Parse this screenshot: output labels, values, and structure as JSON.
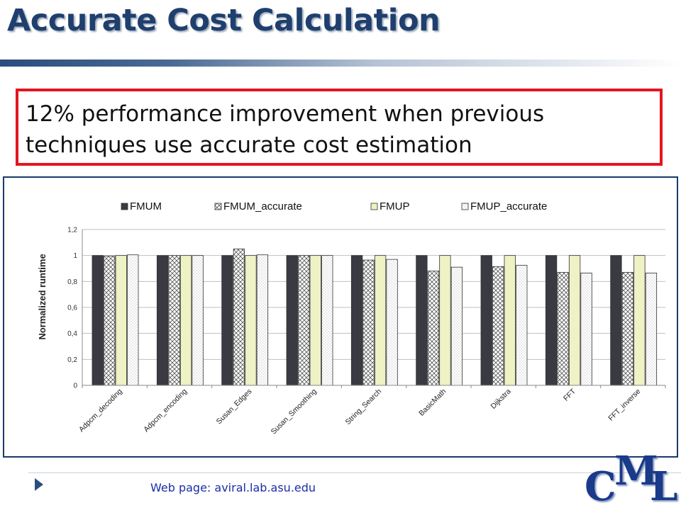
{
  "slide": {
    "title": "Accurate Cost Calculation",
    "callout": "12% performance improvement when previous techniques use accurate cost estimation",
    "footer": "Web page:  aviral.lab.asu.edu",
    "logo": {
      "c": "C",
      "m": "M",
      "l": "L"
    }
  },
  "chart_data": {
    "type": "bar",
    "title": "",
    "xlabel": "",
    "ylabel": "Normalized runtime",
    "ylim": [
      0,
      1.2
    ],
    "yticks": [
      "0",
      "0,2",
      "0,4",
      "0,6",
      "0,8",
      "1",
      "1,2"
    ],
    "ytick_values": [
      0,
      0.2,
      0.4,
      0.6,
      0.8,
      1.0,
      1.2
    ],
    "grid": true,
    "legend_position": "top",
    "categories": [
      "Adpcm_decoding",
      "Adpcm_encoding",
      "Susan_Edges",
      "Susan_Smoothing",
      "String_Search",
      "BasicMath",
      "Dijkstra",
      "FFT",
      "FFT_inverse"
    ],
    "series": [
      {
        "name": "FMUM",
        "fill": "#3a3a42",
        "pattern": "solid",
        "values": [
          1.0,
          1.0,
          1.0,
          1.0,
          1.0,
          1.0,
          1.0,
          1.0,
          1.0
        ]
      },
      {
        "name": "FMUM_accurate",
        "fill": "#ffffff",
        "pattern": "crosshatch",
        "values": [
          0.995,
          1.0,
          1.05,
          1.0,
          0.965,
          0.88,
          0.915,
          0.87,
          0.87
        ]
      },
      {
        "name": "FMUP",
        "fill": "#eef2c4",
        "pattern": "solid",
        "values": [
          1.0,
          1.0,
          1.0,
          1.0,
          1.0,
          1.0,
          1.0,
          1.0,
          1.0
        ]
      },
      {
        "name": "FMUP_accurate",
        "fill": "#ffffff",
        "pattern": "dots",
        "values": [
          1.005,
          1.0,
          1.005,
          1.0,
          0.97,
          0.91,
          0.925,
          0.865,
          0.865
        ]
      }
    ]
  }
}
